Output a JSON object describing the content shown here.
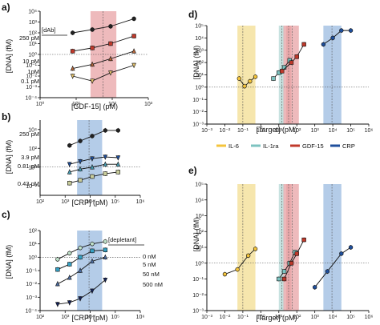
{
  "colors": {
    "il6": "#f4c43c",
    "il1ra": "#7dc3c0",
    "gdf15": "#c0392b",
    "crp": "#1f4f9c",
    "gdf_band": "#e8a3a6",
    "crp_band": "#9bbbe0",
    "il6_band": "#f3de91",
    "il1ra_band": "#b4d8d5",
    "gray_light": "#e6e6e6",
    "gray_mid": "#9e9e9e",
    "gray_dark": "#222222"
  },
  "chart_data": [
    {
      "id": "a",
      "type": "line",
      "panel_letter": "a)",
      "xlabel": "[GDF-15] (pM)",
      "ylabel": "[DNA] (fM)",
      "xscale": "log",
      "yscale": "log",
      "xlim": [
        1,
        1000
      ],
      "ylim": [
        0.0001,
        10000
      ],
      "xticks": [
        1,
        10,
        100,
        1000
      ],
      "xtick_labels": [
        "10⁰",
        "10¹",
        "10²",
        "10³"
      ],
      "yticks": [
        0.0001,
        0.001,
        0.01,
        0.1,
        1,
        10,
        100,
        1000,
        10000
      ],
      "ytick_labels": [
        "10⁻⁴",
        "10⁻³",
        "10⁻²",
        "10⁻¹",
        "10⁰",
        "10¹",
        "10²",
        "10³",
        "10⁴"
      ],
      "bands": [
        {
          "from": 25,
          "to": 130,
          "color": "gdf_band"
        }
      ],
      "vlines": [
        55
      ],
      "hline": 1,
      "legend_title": "[dAb]",
      "series": [
        {
          "name": "250 pM",
          "color": "#222222",
          "marker": "circle",
          "x": [
            8,
            28,
            90,
            400
          ],
          "y": [
            100,
            200,
            400,
            2000
          ]
        },
        {
          "name": "10 pM",
          "color": "#c0392b",
          "marker": "square",
          "x": [
            8,
            28,
            90,
            400
          ],
          "y": [
            2,
            4,
            10,
            50
          ]
        },
        {
          "name": "1pM",
          "color": "#b5683c",
          "marker": "triangle-up",
          "x": [
            8,
            28,
            90,
            400
          ],
          "y": [
            0.05,
            0.12,
            0.4,
            2
          ]
        },
        {
          "name": "0.1 pM",
          "color": "#e0c06c",
          "marker": "triangle-down",
          "x": [
            8,
            28,
            90,
            400
          ],
          "y": [
            0.01,
            0.0035,
            0.02,
            0.1
          ]
        }
      ]
    },
    {
      "id": "b",
      "type": "line",
      "panel_letter": "b)",
      "xlabel": "[CRP] (pM)",
      "ylabel": "[DNA] (fM)",
      "xscale": "log",
      "yscale": "log",
      "xlim": [
        100,
        1000000
      ],
      "ylim": [
        0.001,
        100000
      ],
      "xticks": [
        100,
        1000,
        10000,
        100000,
        1000000
      ],
      "xtick_labels": [
        "10²",
        "10³",
        "10⁴",
        "10⁵",
        "10⁶"
      ],
      "yticks": [
        0.01,
        1,
        100,
        10000
      ],
      "ytick_labels": [
        "10⁻²",
        "10⁰",
        "10²",
        "10⁴"
      ],
      "bands": [
        {
          "from": 3000,
          "to": 30000,
          "color": "crp_band"
        }
      ],
      "vlines": [
        9000
      ],
      "hline": 1,
      "series": [
        {
          "name": "250 pM",
          "color": "#222222",
          "marker": "circle",
          "x": [
            1500,
            4000,
            12000,
            40000,
            130000
          ],
          "y": [
            200,
            600,
            2000,
            8000,
            8000
          ]
        },
        {
          "name": "3.9 pM",
          "color": "#1f4f9c",
          "marker": "triangle-down",
          "x": [
            1500,
            4000,
            12000,
            40000,
            130000
          ],
          "y": [
            2,
            4,
            8,
            12,
            10
          ]
        },
        {
          "name": "0.81 pM",
          "color": "#4a9fb5",
          "marker": "triangle-up",
          "x": [
            1500,
            4000,
            12000,
            40000,
            130000
          ],
          "y": [
            0.3,
            0.6,
            1,
            2,
            2
          ]
        },
        {
          "name": "0.43 pM",
          "color": "#c9cd9c",
          "marker": "square",
          "x": [
            1500,
            4000,
            12000,
            40000,
            130000
          ],
          "y": [
            0.02,
            0.04,
            0.1,
            0.2,
            0.3
          ]
        }
      ]
    },
    {
      "id": "c",
      "type": "line",
      "panel_letter": "c)",
      "xlabel": "[CRP] (pM)",
      "ylabel": "[DNA] (fM)",
      "xscale": "log",
      "yscale": "log",
      "xlim": [
        100,
        1000000
      ],
      "ylim": [
        0.0001,
        100
      ],
      "xticks": [
        100,
        1000,
        10000,
        100000,
        1000000
      ],
      "xtick_labels": [
        "10²",
        "10³",
        "10⁴",
        "10⁵",
        "10⁶"
      ],
      "yticks": [
        0.0001,
        0.001,
        0.01,
        0.1,
        1,
        10,
        100
      ],
      "ytick_labels": [
        "10⁻⁴",
        "10⁻³",
        "10⁻²",
        "10⁻¹",
        "10⁰",
        "10¹",
        "10²"
      ],
      "bands": [
        {
          "from": 3000,
          "to": 30000,
          "color": "crp_band"
        }
      ],
      "vlines": [
        9000
      ],
      "hline": 1,
      "legend_title": "[depletant]",
      "series": [
        {
          "name": "0 nM",
          "color": "#bfe0c9",
          "marker": "circle",
          "x": [
            500,
            1500,
            4000,
            12000,
            40000
          ],
          "y": [
            0.7,
            2,
            5,
            10,
            15
          ]
        },
        {
          "name": "5 nM",
          "color": "#37a1c4",
          "marker": "square",
          "x": [
            500,
            1500,
            4000,
            12000,
            40000
          ],
          "y": [
            0.12,
            0.3,
            1,
            3,
            3.5
          ]
        },
        {
          "name": "50 nM",
          "color": "#4d6ea3",
          "marker": "triangle-up",
          "x": [
            500,
            1500,
            4000,
            12000,
            40000
          ],
          "y": [
            0.01,
            0.03,
            0.1,
            0.5,
            1
          ]
        },
        {
          "name": "500 nM",
          "color": "#15235a",
          "marker": "triangle-down",
          "x": [
            500,
            1500,
            4000,
            12000,
            40000
          ],
          "y": [
            0.0003,
            0.0004,
            0.0008,
            0.003,
            0.02
          ]
        }
      ]
    },
    {
      "id": "d",
      "type": "line",
      "panel_letter": "d)",
      "xlabel": "[Target] (pM)",
      "ylabel": "[DNA] (fM)",
      "xscale": "log",
      "yscale": "log",
      "xlim": [
        0.001,
        1000000
      ],
      "ylim": [
        0.001,
        100000
      ],
      "xticks": [
        0.001,
        0.01,
        0.1,
        1,
        10,
        100,
        1000,
        10000,
        100000,
        1000000
      ],
      "xtick_labels": [
        "10⁻³",
        "10⁻²",
        "10⁻¹",
        "10⁰",
        "10¹",
        "10²",
        "10³",
        "10⁴",
        "10⁵",
        "10⁶"
      ],
      "yticks": [
        0.001,
        0.01,
        0.1,
        1,
        10,
        100,
        1000,
        10000,
        100000
      ],
      "ytick_labels": [
        "10⁻³",
        "10⁻²",
        "10⁻¹",
        "10⁰",
        "10¹",
        "10²",
        "10³",
        "10⁴",
        "10⁵"
      ],
      "bands": [
        {
          "from": 0.05,
          "to": 0.5,
          "color": "il6_band"
        },
        {
          "from": 10,
          "to": 20,
          "color": "il1ra_band"
        },
        {
          "from": 18,
          "to": 50,
          "color": "gdf_band"
        },
        {
          "from": 25,
          "to": 130,
          "color": "gdf_band"
        },
        {
          "from": 3000,
          "to": 30000,
          "color": "crp_band"
        }
      ],
      "vlines": [
        0.1,
        15,
        35,
        55,
        9000
      ],
      "hline": 1,
      "legend": [
        "IL-6",
        "IL-1ra",
        "GDF-15",
        "CRP"
      ],
      "series": [
        {
          "name": "IL-6",
          "color": "#f4c43c",
          "marker": "circle",
          "x": [
            0.0625,
            0.125,
            0.25,
            0.5
          ],
          "y": [
            5,
            1.2,
            3,
            7
          ]
        },
        {
          "name": "IL-1ra",
          "color": "#7dc3c0",
          "marker": "square",
          "x": [
            5,
            10,
            20,
            40
          ],
          "y": [
            5,
            15,
            40,
            150
          ]
        },
        {
          "name": "GDF-15",
          "color": "#c0392b",
          "marker": "square",
          "x": [
            15,
            50,
            100,
            250
          ],
          "y": [
            20,
            100,
            300,
            3000
          ]
        },
        {
          "name": "CRP",
          "color": "#1f4f9c",
          "marker": "circle",
          "x": [
            3000,
            10000,
            30000,
            100000
          ],
          "y": [
            3000,
            10000,
            40000,
            40000
          ]
        }
      ]
    },
    {
      "id": "e",
      "type": "line",
      "panel_letter": "e)",
      "xlabel": "[Target] (pM)",
      "ylabel": "[DNA] (fM)",
      "xscale": "log",
      "yscale": "log",
      "xlim": [
        0.001,
        1000000
      ],
      "ylim": [
        0.001,
        100000
      ],
      "xticks": [
        0.001,
        0.01,
        0.1,
        1,
        10,
        100,
        1000,
        10000,
        100000,
        1000000
      ],
      "xtick_labels": [
        "10⁻³",
        "10⁻²",
        "10⁻¹",
        "10⁰",
        "10¹",
        "10²",
        "10³",
        "10⁴",
        "10⁵",
        "10⁶"
      ],
      "yticks": [
        0.001,
        0.01,
        0.1,
        1,
        10,
        100,
        1000,
        10000,
        100000
      ],
      "ytick_labels": [
        "10⁻³",
        "10⁻²",
        "10⁻¹",
        "10⁰",
        "10¹",
        "10²",
        "10³",
        "10⁴",
        "10⁵"
      ],
      "bands": [
        {
          "from": 0.05,
          "to": 0.5,
          "color": "il6_band"
        },
        {
          "from": 10,
          "to": 20,
          "color": "il1ra_band"
        },
        {
          "from": 18,
          "to": 50,
          "color": "gdf_band"
        },
        {
          "from": 25,
          "to": 130,
          "color": "gdf_band"
        },
        {
          "from": 3000,
          "to": 30000,
          "color": "crp_band"
        }
      ],
      "vlines": [
        0.1,
        15,
        35,
        55,
        9000
      ],
      "hline": 1,
      "series": [
        {
          "name": "IL-6",
          "color": "#f4c43c",
          "marker": "circle",
          "x": [
            0.01,
            0.05,
            0.2,
            0.5
          ],
          "y": [
            0.2,
            0.4,
            3,
            8
          ]
        },
        {
          "name": "IL-1ra",
          "color": "#7dc3c0",
          "marker": "square",
          "x": [
            10,
            20,
            40,
            80
          ],
          "y": [
            0.1,
            0.3,
            1,
            5
          ]
        },
        {
          "name": "GDF-15",
          "color": "#c0392b",
          "marker": "square",
          "x": [
            20,
            50,
            100,
            250
          ],
          "y": [
            0.1,
            1,
            4,
            30
          ]
        },
        {
          "name": "CRP",
          "color": "#1f4f9c",
          "marker": "circle",
          "x": [
            1000,
            5000,
            30000,
            100000
          ],
          "y": [
            0.03,
            0.3,
            4,
            10
          ]
        }
      ]
    }
  ]
}
